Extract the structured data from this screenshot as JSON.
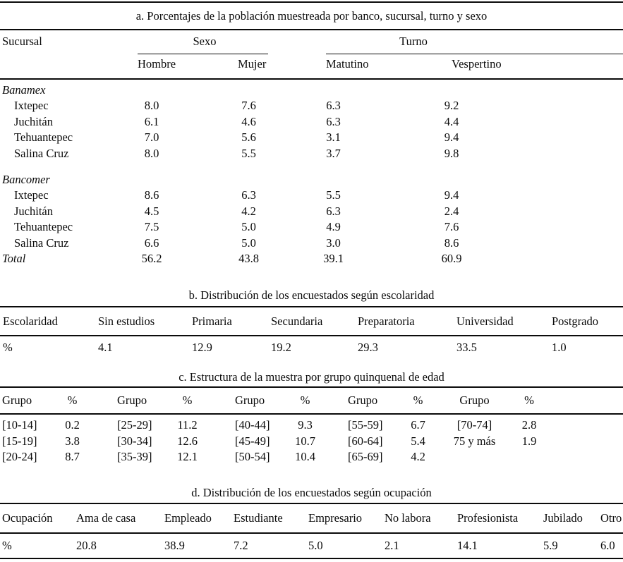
{
  "page": {
    "background": "#ffffff",
    "ink": "#0b0b0b"
  },
  "tables": {
    "a": {
      "title": "a. Porcentajes de la población muestreada por banco, sucursal, turno y sexo",
      "col0_header": "Sucursal",
      "spanners": [
        "Sexo",
        "Turno"
      ],
      "columns": [
        "Hombre",
        "Mujer",
        "Matutino",
        "Vespertino"
      ],
      "groups": [
        {
          "name": "Banamex",
          "rows": [
            {
              "label": "Ixtepec",
              "values": [
                "8.0",
                "7.6",
                "6.3",
                "9.2"
              ]
            },
            {
              "label": "Juchitán",
              "values": [
                "6.1",
                "4.6",
                "6.3",
                "4.4"
              ]
            },
            {
              "label": "Tehuantepec",
              "values": [
                "7.0",
                "5.6",
                "3.1",
                "9.4"
              ]
            },
            {
              "label": "Salina Cruz",
              "values": [
                "8.0",
                "5.5",
                "3.7",
                "9.8"
              ]
            }
          ]
        },
        {
          "name": "Bancomer",
          "rows": [
            {
              "label": "Ixtepec",
              "values": [
                "8.6",
                "6.3",
                "5.5",
                "9.4"
              ]
            },
            {
              "label": "Juchitán",
              "values": [
                "4.5",
                "4.2",
                "6.3",
                "2.4"
              ]
            },
            {
              "label": "Tehuantepec",
              "values": [
                "7.5",
                "5.0",
                "4.9",
                "7.6"
              ]
            },
            {
              "label": "Salina Cruz",
              "values": [
                "6.6",
                "5.0",
                "3.0",
                "8.6"
              ]
            }
          ]
        }
      ],
      "total": {
        "label": "Total",
        "values": [
          "56.2",
          "43.8",
          "39.1",
          "60.9"
        ]
      }
    },
    "b": {
      "title": "b. Distribución de los encuestados según escolaridad",
      "header": [
        "Escolaridad",
        "Sin estudios",
        "Primaria",
        "Secundaria",
        "Preparatoria",
        "Universidad",
        "Postgrado"
      ],
      "row": [
        "%",
        "4.1",
        "12.9",
        "19.2",
        "29.3",
        "33.5",
        "1.0"
      ]
    },
    "c": {
      "title": "c. Estructura de la muestra por grupo quinquenal de edad",
      "header": [
        "Grupo",
        "%",
        "Grupo",
        "%",
        "Grupo",
        "%",
        "Grupo",
        "%",
        "Grupo",
        "%"
      ],
      "rows": [
        [
          "[10-14]",
          "0.2",
          "[25-29]",
          "11.2",
          "[40-44]",
          "9.3",
          "[55-59]",
          "6.7",
          "[70-74]",
          "2.8"
        ],
        [
          "[15-19]",
          "3.8",
          "[30-34]",
          "12.6",
          "[45-49]",
          "10.7",
          "[60-64]",
          "5.4",
          "75 y más",
          "1.9"
        ],
        [
          "[20-24]",
          "8.7",
          "[35-39]",
          "12.1",
          "[50-54]",
          "10.4",
          "[65-69]",
          "4.2",
          "",
          ""
        ]
      ]
    },
    "d": {
      "title": "d. Distribución de los encuestados según ocupación",
      "header": [
        "Ocupación",
        "Ama de casa",
        "Empleado",
        "Estudiante",
        "Empresario",
        "No labora",
        "Profesionista",
        "Jubilado",
        "Otro"
      ],
      "row": [
        "%",
        "20.8",
        "38.9",
        "7.2",
        "5.0",
        "2.1",
        "14.1",
        "5.9",
        "6.0"
      ]
    }
  }
}
